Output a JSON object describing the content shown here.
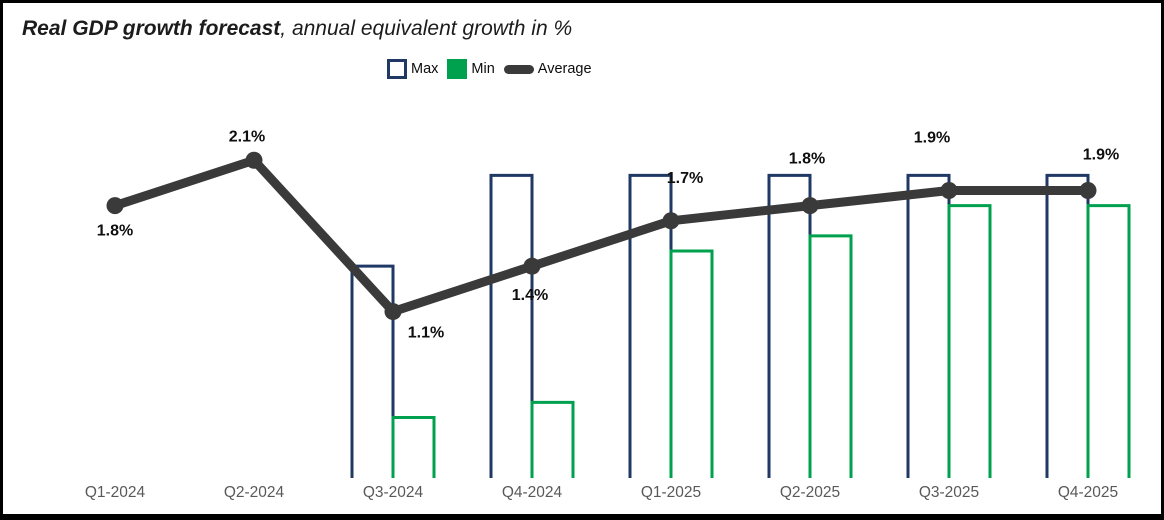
{
  "header": {
    "title_bold": "Real GDP growth forecast",
    "title_rest": ", annual equivalent growth in %"
  },
  "legend": {
    "items": [
      {
        "label": "Max",
        "swatch": "outlined-square",
        "color": "#1f3864"
      },
      {
        "label": "Min",
        "swatch": "filled-square",
        "color": "#00a14e"
      },
      {
        "label": "Average",
        "swatch": "thick-dash",
        "color": "#3a3a3a"
      }
    ],
    "position": "top-center"
  },
  "chart_data": {
    "type": "bar",
    "subtype": "grouped-range-bars-with-average-line",
    "title": "Real GDP growth forecast, annual equivalent growth in %",
    "xlabel": "",
    "ylabel": "annual equivalent growth in %",
    "ylim": [
      0,
      2.5
    ],
    "grid": false,
    "y_axis_shown": false,
    "categories": [
      "Q1-2024",
      "Q2-2024",
      "Q3-2024",
      "Q4-2024",
      "Q1-2025",
      "Q2-2025",
      "Q3-2025",
      "Q4-2025"
    ],
    "series": [
      {
        "name": "Max",
        "type": "bar",
        "style": "hollow-outline",
        "color": "#1f3864",
        "values": [
          null,
          null,
          1.4,
          2.0,
          2.0,
          2.0,
          2.0,
          2.0
        ]
      },
      {
        "name": "Min",
        "type": "bar",
        "style": "hollow-outline",
        "color": "#00a14e",
        "values": [
          null,
          null,
          0.4,
          0.5,
          1.5,
          1.6,
          1.8,
          1.8
        ]
      },
      {
        "name": "Average",
        "type": "line",
        "color": "#3a3a3a",
        "marker": "circle",
        "values": [
          1.8,
          2.1,
          1.1,
          1.4,
          1.7,
          1.8,
          1.9,
          1.9
        ],
        "labels": [
          "1.8%",
          "2.1%",
          "1.1%",
          "1.4%",
          "1.7%",
          "1.8%",
          "1.9%",
          "1.9%"
        ]
      }
    ]
  }
}
